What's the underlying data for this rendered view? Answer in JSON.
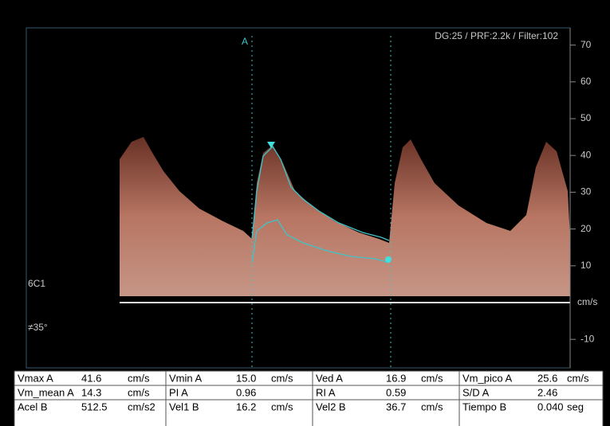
{
  "header": {
    "settings": "DG:25 /   PRF:2.2k   / Filter:102",
    "probe": "6C1",
    "angle": "≠35°",
    "cursor": "A"
  },
  "axis": {
    "unit": "cm/s",
    "ticks": [
      70,
      60,
      50,
      40,
      30,
      20,
      10,
      -10
    ],
    "lim": [
      -15,
      75
    ]
  },
  "table": {
    "rows": [
      [
        [
          "Vmax A",
          "41.6",
          "cm/s"
        ],
        [
          "Vmin A",
          "15.0",
          "cm/s"
        ],
        [
          "Ved A",
          "16.9",
          "cm/s"
        ],
        [
          "Vm_pico A",
          "25.6",
          "cm/s"
        ]
      ],
      [
        [
          "Vm_mean A",
          "14.3",
          "cm/s"
        ],
        [
          "PI A",
          "0.96"
        ],
        [
          "RI A",
          "0.59"
        ],
        [
          "S/D A",
          "2.46"
        ]
      ],
      [
        [
          "Acel B",
          "512.5",
          "cm/s2"
        ],
        [
          "Vel1 B",
          "16.2",
          "cm/s"
        ],
        [
          "Vel2 B",
          "36.7",
          "cm/s"
        ],
        [
          "Tiempo B",
          "0.040",
          "seg"
        ]
      ]
    ]
  }
}
